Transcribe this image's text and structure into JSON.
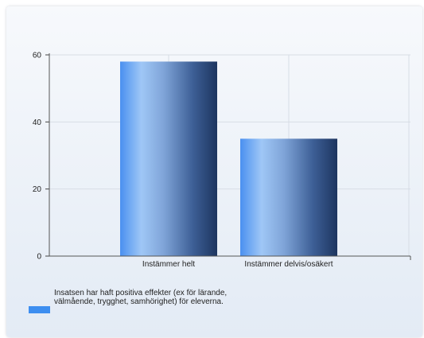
{
  "chart_data": {
    "type": "bar",
    "categories": [
      "Instämmer helt",
      "Instämmer delvis/osäkert"
    ],
    "series": [
      {
        "name": "Insatsen har haft positiva effekter (ex för lärande, välmående, trygghet, samhörighet) för eleverna.",
        "values": [
          58,
          35
        ],
        "color": "#3d8ef0"
      }
    ],
    "yticks": [
      0,
      20,
      40,
      60
    ],
    "ylim": [
      0,
      60
    ],
    "grid": true,
    "legend_position": "bottom-left"
  }
}
